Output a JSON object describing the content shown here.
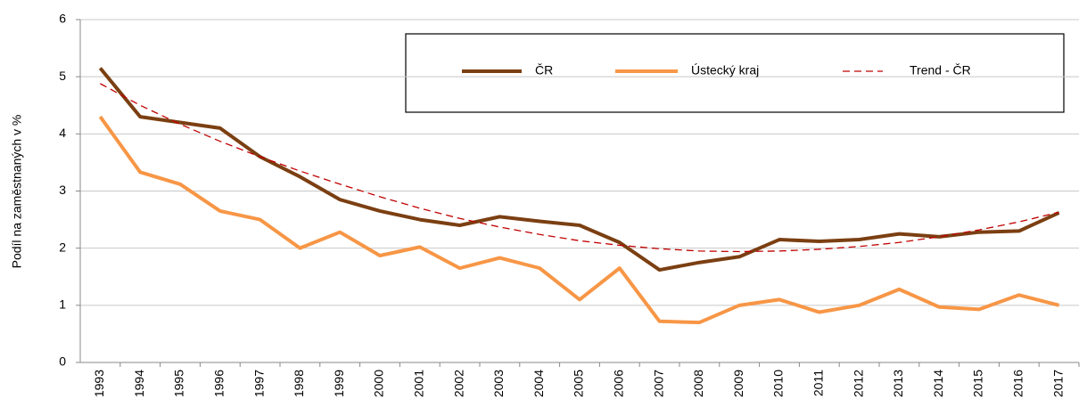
{
  "chart_data": {
    "type": "line",
    "ylabel": "Podíl na zaměstnaných v %",
    "categories": [
      "1993",
      "1994",
      "1995",
      "1996",
      "1997",
      "1998",
      "1999",
      "2000",
      "2001",
      "2002",
      "2003",
      "2004",
      "2005",
      "2006",
      "2007",
      "2008",
      "2009",
      "2010",
      "2011",
      "2012",
      "2013",
      "2014",
      "2015",
      "2016",
      "2017"
    ],
    "series": [
      {
        "name": "ČR",
        "color": "#7b3f12",
        "width": 4,
        "dashed": false,
        "values": [
          5.15,
          4.3,
          4.2,
          4.1,
          3.6,
          3.25,
          2.85,
          2.65,
          2.5,
          2.4,
          2.55,
          2.47,
          2.4,
          2.1,
          1.62,
          1.75,
          1.85,
          2.15,
          2.12,
          2.15,
          2.25,
          2.2,
          2.28,
          2.3,
          2.62
        ]
      },
      {
        "name": "Ústecký kraj",
        "color": "#f79646",
        "width": 4,
        "dashed": false,
        "values": [
          4.3,
          3.33,
          3.12,
          2.65,
          2.5,
          2.0,
          2.28,
          1.87,
          2.02,
          1.65,
          1.83,
          1.65,
          1.1,
          1.65,
          0.72,
          0.7,
          1.0,
          1.1,
          0.88,
          1.0,
          1.28,
          0.97,
          0.93,
          1.18,
          1.0
        ]
      },
      {
        "name": "Trend - ČR",
        "color": "#c00000",
        "width": 1.3,
        "dashed": true,
        "values": [
          4.88,
          4.5,
          4.17,
          3.87,
          3.6,
          3.35,
          3.12,
          2.9,
          2.7,
          2.52,
          2.37,
          2.24,
          2.13,
          2.05,
          1.99,
          1.95,
          1.94,
          1.95,
          1.98,
          2.03,
          2.1,
          2.2,
          2.32,
          2.46,
          2.63
        ]
      }
    ],
    "ylim": [
      0,
      6
    ],
    "yticks": [
      0,
      1,
      2,
      3,
      4,
      5,
      6
    ],
    "grid": true
  }
}
